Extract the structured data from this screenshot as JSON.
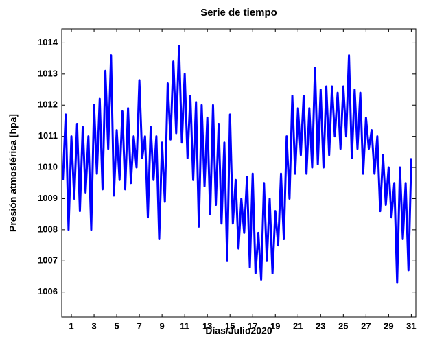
{
  "chart_data": {
    "type": "line",
    "title": "Serie de tiempo",
    "xlabel": "Días/Julio2020",
    "ylabel": "Presión atmosférica [hpa]",
    "x": [
      0.25,
      0.5,
      0.75,
      1,
      1.25,
      1.5,
      1.75,
      2,
      2.25,
      2.5,
      2.75,
      3,
      3.25,
      3.5,
      3.75,
      4,
      4.25,
      4.5,
      4.75,
      5,
      5.25,
      5.5,
      5.75,
      6,
      6.25,
      6.5,
      6.75,
      7,
      7.25,
      7.5,
      7.75,
      8,
      8.25,
      8.5,
      8.75,
      9,
      9.25,
      9.5,
      9.75,
      10,
      10.25,
      10.5,
      10.75,
      11,
      11.25,
      11.5,
      11.75,
      12,
      12.25,
      12.5,
      12.75,
      13,
      13.25,
      13.5,
      13.75,
      14,
      14.25,
      14.5,
      14.75,
      15,
      15.25,
      15.5,
      15.75,
      16,
      16.25,
      16.5,
      16.75,
      17,
      17.25,
      17.5,
      17.75,
      18,
      18.25,
      18.5,
      18.75,
      19,
      19.25,
      19.5,
      19.75,
      20,
      20.25,
      20.5,
      20.75,
      21,
      21.25,
      21.5,
      21.75,
      22,
      22.25,
      22.5,
      22.75,
      23,
      23.25,
      23.5,
      23.75,
      24,
      24.25,
      24.5,
      24.75,
      25,
      25.25,
      25.5,
      25.75,
      26,
      26.25,
      26.5,
      26.75,
      27,
      27.25,
      27.5,
      27.75,
      28,
      28.25,
      28.5,
      28.75,
      29,
      29.25,
      29.5,
      29.75,
      30,
      30.25,
      30.5,
      30.75,
      31
    ],
    "series": [
      {
        "color": "#0000ff",
        "values": [
          1009.6,
          1011.7,
          1008.0,
          1011.0,
          1009.0,
          1011.4,
          1008.6,
          1011.3,
          1009.2,
          1011.0,
          1008.0,
          1012.0,
          1009.8,
          1012.2,
          1009.3,
          1013.1,
          1010.6,
          1013.6,
          1009.1,
          1011.2,
          1009.6,
          1011.8,
          1009.3,
          1011.9,
          1009.5,
          1011.0,
          1010.0,
          1012.8,
          1010.3,
          1011.0,
          1008.4,
          1011.3,
          1009.6,
          1011.0,
          1007.7,
          1010.8,
          1008.9,
          1012.7,
          1010.9,
          1013.4,
          1011.1,
          1013.9,
          1010.8,
          1013.0,
          1010.3,
          1012.3,
          1009.6,
          1012.1,
          1008.1,
          1012.0,
          1009.4,
          1011.6,
          1008.5,
          1012.0,
          1008.8,
          1011.4,
          1008.2,
          1010.8,
          1007.0,
          1011.7,
          1008.2,
          1009.6,
          1007.4,
          1009.0,
          1007.9,
          1009.7,
          1006.8,
          1009.8,
          1006.6,
          1007.9,
          1006.4,
          1009.5,
          1007.0,
          1009.0,
          1006.6,
          1008.6,
          1007.5,
          1009.8,
          1007.7,
          1011.0,
          1009.0,
          1012.3,
          1009.8,
          1011.9,
          1010.4,
          1012.3,
          1009.8,
          1011.9,
          1010.0,
          1013.2,
          1010.1,
          1012.5,
          1010.0,
          1012.6,
          1010.4,
          1012.6,
          1011.0,
          1012.4,
          1010.6,
          1012.6,
          1011.0,
          1013.6,
          1010.3,
          1012.5,
          1010.6,
          1012.4,
          1009.8,
          1011.6,
          1010.6,
          1011.2,
          1009.8,
          1011.0,
          1008.6,
          1010.4,
          1008.8,
          1010.0,
          1008.4,
          1009.5,
          1006.3,
          1010.0,
          1007.7,
          1009.5,
          1006.7,
          1010.3
        ]
      }
    ],
    "xlim": [
      0.15,
      31.4
    ],
    "ylim": [
      1005.2,
      1014.45
    ],
    "xticks": [
      1,
      3,
      5,
      7,
      9,
      11,
      13,
      15,
      17,
      19,
      21,
      23,
      25,
      27,
      29,
      31
    ],
    "yticks": [
      1006,
      1007,
      1008,
      1009,
      1010,
      1011,
      1012,
      1013,
      1014
    ]
  }
}
